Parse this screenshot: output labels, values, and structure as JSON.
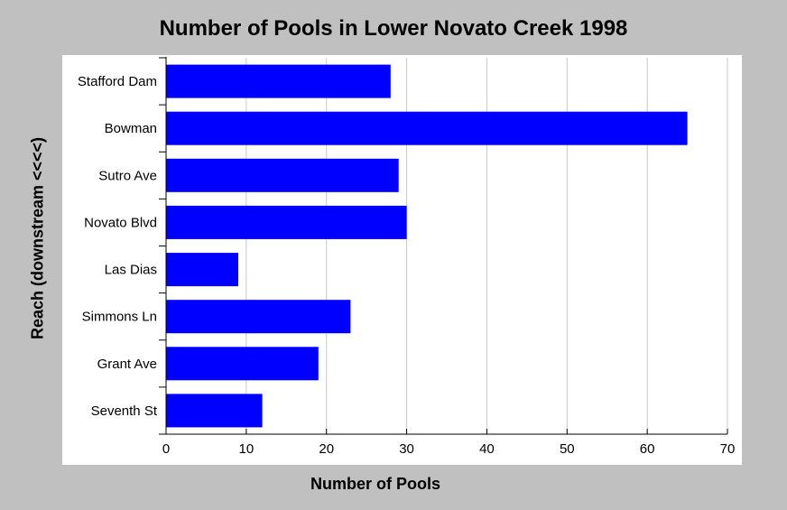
{
  "chart_data": {
    "type": "bar",
    "orientation": "horizontal",
    "title": "Number of Pools in Lower Novato Creek 1998",
    "xlabel": "Number of Pools",
    "ylabel": "Reach (downstream <<<<)",
    "categories": [
      "Stafford Dam",
      "Bowman",
      "Sutro Ave",
      "Novato Blvd",
      "Las Dias",
      "Simmons Ln",
      "Grant Ave",
      "Seventh St"
    ],
    "values": [
      28,
      65,
      29,
      30,
      9,
      23,
      19,
      12
    ],
    "xlim": [
      0,
      70
    ],
    "xticks": [
      0,
      10,
      20,
      30,
      40,
      50,
      60,
      70
    ],
    "grid": "vertical",
    "bar_color": "#0000ff",
    "legend": "none"
  }
}
